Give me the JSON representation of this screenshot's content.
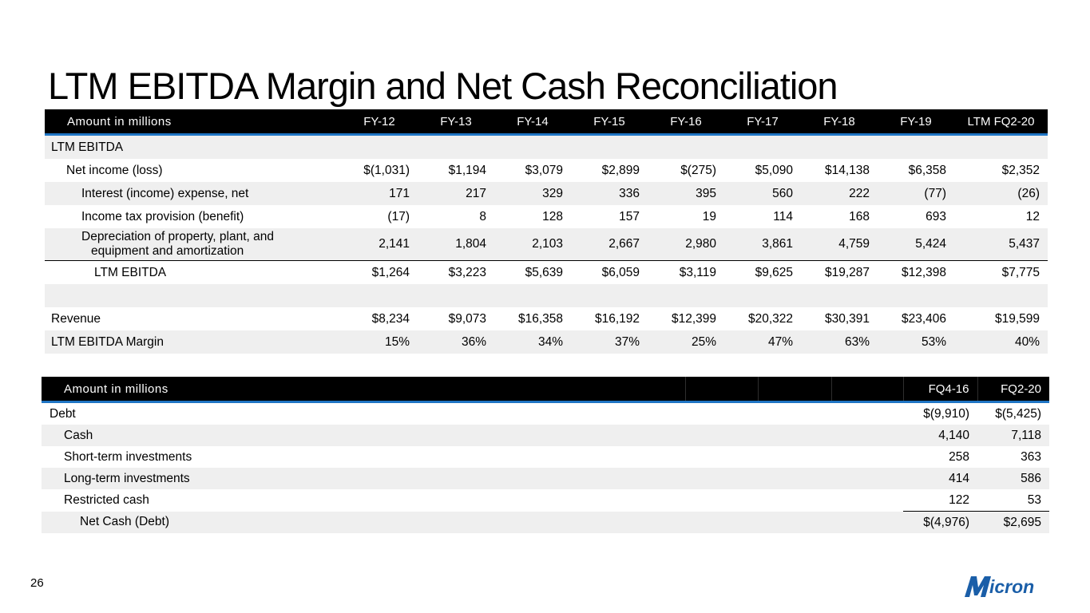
{
  "title": "LTM EBITDA Margin and Net Cash Reconciliation",
  "page_number": "26",
  "logo_text": "Micron",
  "colors": {
    "accent": "#1f75c4",
    "header_bg": "#000000",
    "stripe": "#efefef",
    "logo": "#1a5ea8"
  },
  "ebitda_table": {
    "header_label": "Amount in millions",
    "columns": [
      "FY-12",
      "FY-13",
      "FY-14",
      "FY-15",
      "FY-16",
      "FY-17",
      "FY-18",
      "FY-19",
      "LTM FQ2-20"
    ],
    "rows": [
      {
        "label": "LTM EBITDA",
        "values": []
      },
      {
        "label": "Net income (loss)",
        "values": [
          "$(1,031)",
          "$1,194",
          "$3,079",
          "$2,899",
          "$(275)",
          "$5,090",
          "$14,138",
          "$6,358",
          "$2,352"
        ]
      },
      {
        "label": "Interest (income) expense, net",
        "values": [
          "171",
          "217",
          "329",
          "336",
          "395",
          "560",
          "222",
          "(77)",
          "(26)"
        ]
      },
      {
        "label": "Income tax provision (benefit)",
        "values": [
          "(17)",
          "8",
          "128",
          "157",
          "19",
          "114",
          "168",
          "693",
          "12"
        ]
      },
      {
        "label_line1": "Depreciation of property, plant, and",
        "label_line2": "equipment and amortization",
        "values": [
          "2,141",
          "1,804",
          "2,103",
          "2,667",
          "2,980",
          "3,861",
          "4,759",
          "5,424",
          "5,437"
        ]
      },
      {
        "label": "LTM EBITDA",
        "values": [
          "$1,264",
          "$3,223",
          "$5,639",
          "$6,059",
          "$3,119",
          "$9,625",
          "$19,287",
          "$12,398",
          "$7,775"
        ]
      },
      {
        "label": "",
        "values": []
      },
      {
        "label": "Revenue",
        "values": [
          "$8,234",
          "$9,073",
          "$16,358",
          "$16,192",
          "$12,399",
          "$20,322",
          "$30,391",
          "$23,406",
          "$19,599"
        ]
      },
      {
        "label": "LTM EBITDA Margin",
        "values": [
          "15%",
          "36%",
          "34%",
          "37%",
          "25%",
          "47%",
          "63%",
          "53%",
          "40%"
        ]
      }
    ]
  },
  "net_cash_table": {
    "header_label": "Amount in millions",
    "columns": [
      "FQ4-16",
      "FQ2-20"
    ],
    "rows": [
      {
        "label": "Debt",
        "values": [
          "$(9,910)",
          "$(5,425)"
        ]
      },
      {
        "label": "Cash",
        "values": [
          "4,140",
          "7,118"
        ]
      },
      {
        "label": "Short-term investments",
        "values": [
          "258",
          "363"
        ]
      },
      {
        "label": "Long-term investments",
        "values": [
          "414",
          "586"
        ]
      },
      {
        "label": "Restricted cash",
        "values": [
          "122",
          "53"
        ]
      },
      {
        "label": "Net Cash (Debt)",
        "values": [
          "$(4,976)",
          "$2,695"
        ]
      }
    ]
  }
}
